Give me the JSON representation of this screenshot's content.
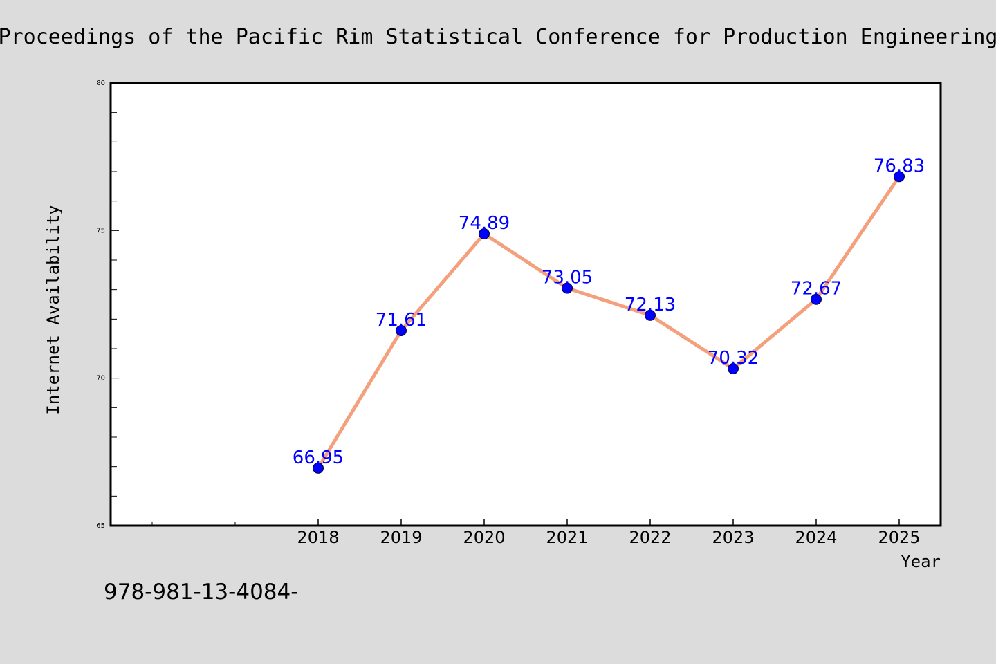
{
  "chart_data": {
    "type": "line",
    "title": "Proceedings of the Pacific Rim Statistical Conference for Production Engineering",
    "xlabel": "Year",
    "ylabel": "Internet Availability",
    "categories": [
      "2018",
      "2019",
      "2020",
      "2021",
      "2022",
      "2023",
      "2024",
      "2025"
    ],
    "series": [
      {
        "values": [
          66.95,
          71.61,
          74.89,
          73.05,
          72.13,
          70.32,
          72.67,
          76.83
        ],
        "line_color": "#f4a07c",
        "marker_color": "#0000ff"
      }
    ],
    "data_labels": [
      "66.95",
      "71.61",
      "74.89",
      "73.05",
      "72.13",
      "70.32",
      "72.67",
      "76.83"
    ],
    "data_label_color": "#0000ff",
    "ylim": [
      65,
      80
    ],
    "yticks": [
      "65",
      "70",
      "75",
      "80"
    ],
    "grid": false,
    "legend": "none"
  },
  "footer": {
    "isbn": "978-981-13-4084-"
  },
  "colors": {
    "background": "#dcdcdc",
    "plot_background": "#ffffff"
  }
}
